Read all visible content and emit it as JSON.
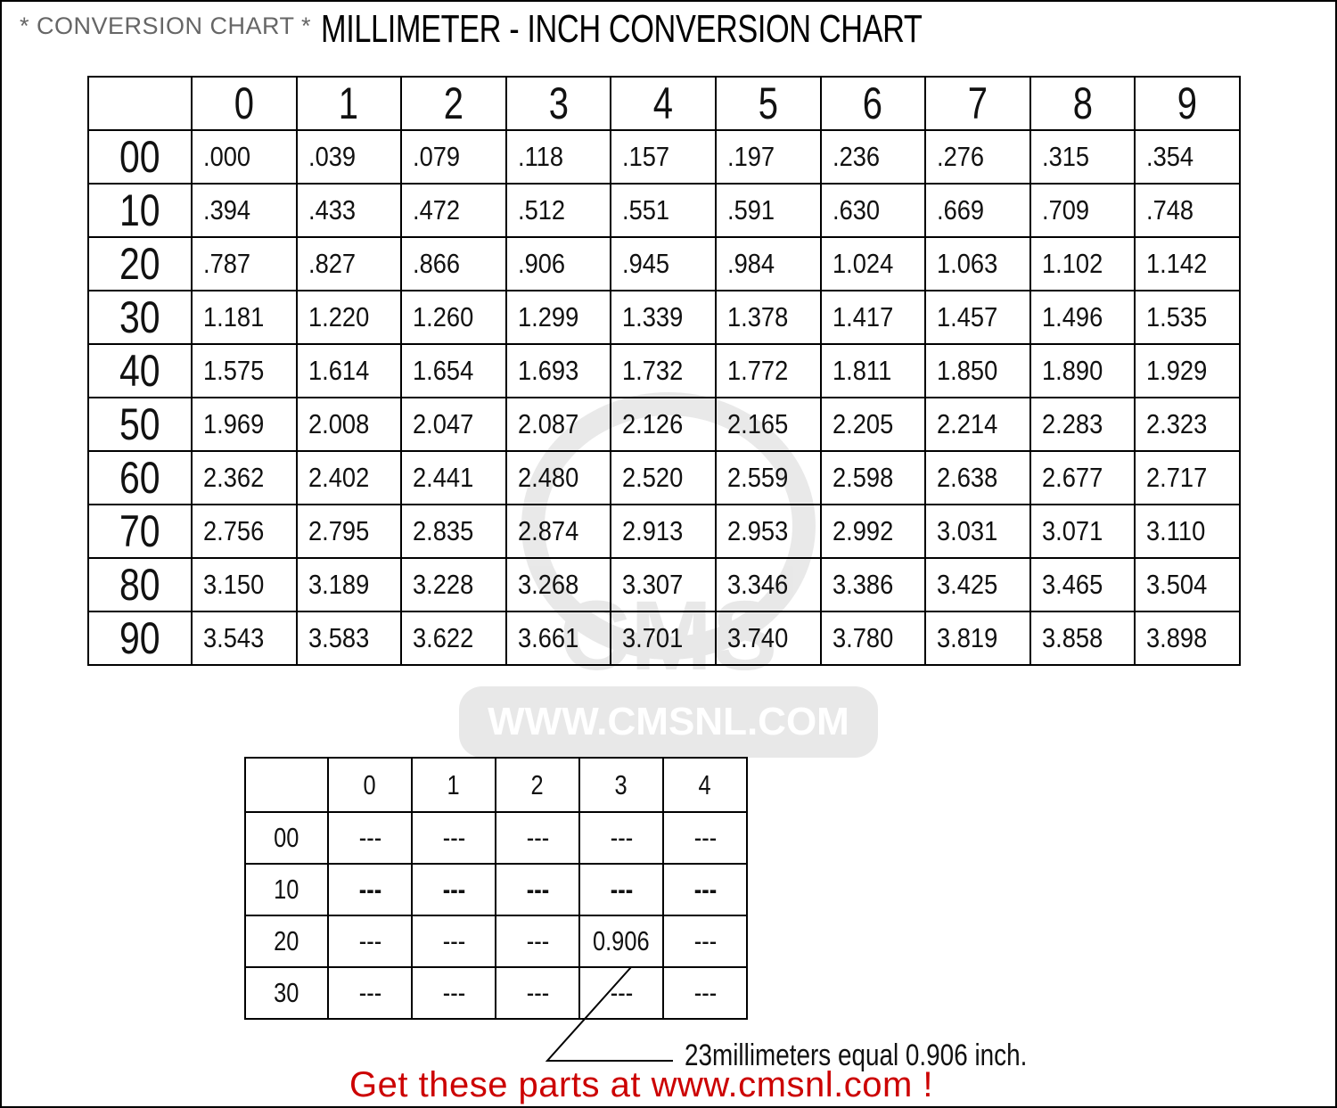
{
  "header": {
    "subtitle": "* CONVERSION CHART *",
    "title": "MILLIMETER - INCH CONVERSION CHART"
  },
  "main_table": {
    "columns": [
      "0",
      "1",
      "2",
      "3",
      "4",
      "5",
      "6",
      "7",
      "8",
      "9"
    ],
    "rows": [
      {
        "label": "00",
        "values": [
          ".000",
          ".039",
          ".079",
          ".118",
          ".157",
          ".197",
          ".236",
          ".276",
          ".315",
          ".354"
        ]
      },
      {
        "label": "10",
        "values": [
          ".394",
          ".433",
          ".472",
          ".512",
          ".551",
          ".591",
          ".630",
          ".669",
          ".709",
          ".748"
        ]
      },
      {
        "label": "20",
        "values": [
          ".787",
          ".827",
          ".866",
          ".906",
          ".945",
          ".984",
          "1.024",
          "1.063",
          "1.102",
          "1.142"
        ]
      },
      {
        "label": "30",
        "values": [
          "1.181",
          "1.220",
          "1.260",
          "1.299",
          "1.339",
          "1.378",
          "1.417",
          "1.457",
          "1.496",
          "1.535"
        ]
      },
      {
        "label": "40",
        "values": [
          "1.575",
          "1.614",
          "1.654",
          "1.693",
          "1.732",
          "1.772",
          "1.811",
          "1.850",
          "1.890",
          "1.929"
        ]
      },
      {
        "label": "50",
        "values": [
          "1.969",
          "2.008",
          "2.047",
          "2.087",
          "2.126",
          "2.165",
          "2.205",
          "2.214",
          "2.283",
          "2.323"
        ]
      },
      {
        "label": "60",
        "values": [
          "2.362",
          "2.402",
          "2.441",
          "2.480",
          "2.520",
          "2.559",
          "2.598",
          "2.638",
          "2.677",
          "2.717"
        ]
      },
      {
        "label": "70",
        "values": [
          "2.756",
          "2.795",
          "2.835",
          "2.874",
          "2.913",
          "2.953",
          "2.992",
          "3.031",
          "3.071",
          "3.110"
        ]
      },
      {
        "label": "80",
        "values": [
          "3.150",
          "3.189",
          "3.228",
          "3.268",
          "3.307",
          "3.346",
          "3.386",
          "3.425",
          "3.465",
          "3.504"
        ]
      },
      {
        "label": "90",
        "values": [
          "3.543",
          "3.583",
          "3.622",
          "3.661",
          "3.701",
          "3.740",
          "3.780",
          "3.819",
          "3.858",
          "3.898"
        ]
      }
    ]
  },
  "example_table": {
    "columns": [
      "0",
      "1",
      "2",
      "3",
      "4"
    ],
    "rows": [
      {
        "label": "00",
        "values": [
          "---",
          "---",
          "---",
          "---",
          "---"
        ],
        "bold": false
      },
      {
        "label": "10",
        "values": [
          "---",
          "---",
          "---",
          "---",
          "---"
        ],
        "bold": true
      },
      {
        "label": "20",
        "values": [
          "---",
          "---",
          "---",
          "0.906",
          "---"
        ],
        "bold": false
      },
      {
        "label": "30",
        "values": [
          "---",
          "---",
          "---",
          "---",
          "---"
        ],
        "bold": false
      }
    ]
  },
  "annotation": "23millimeters equal 0.906 inch.",
  "promo": "Get these parts at www.cmsnl.com !",
  "watermark": {
    "logo_text": "CMS",
    "url": "WWW.CMSNL.COM"
  },
  "colors": {
    "promo": "#cc0000",
    "subtitle": "#666666",
    "text": "#111111"
  }
}
